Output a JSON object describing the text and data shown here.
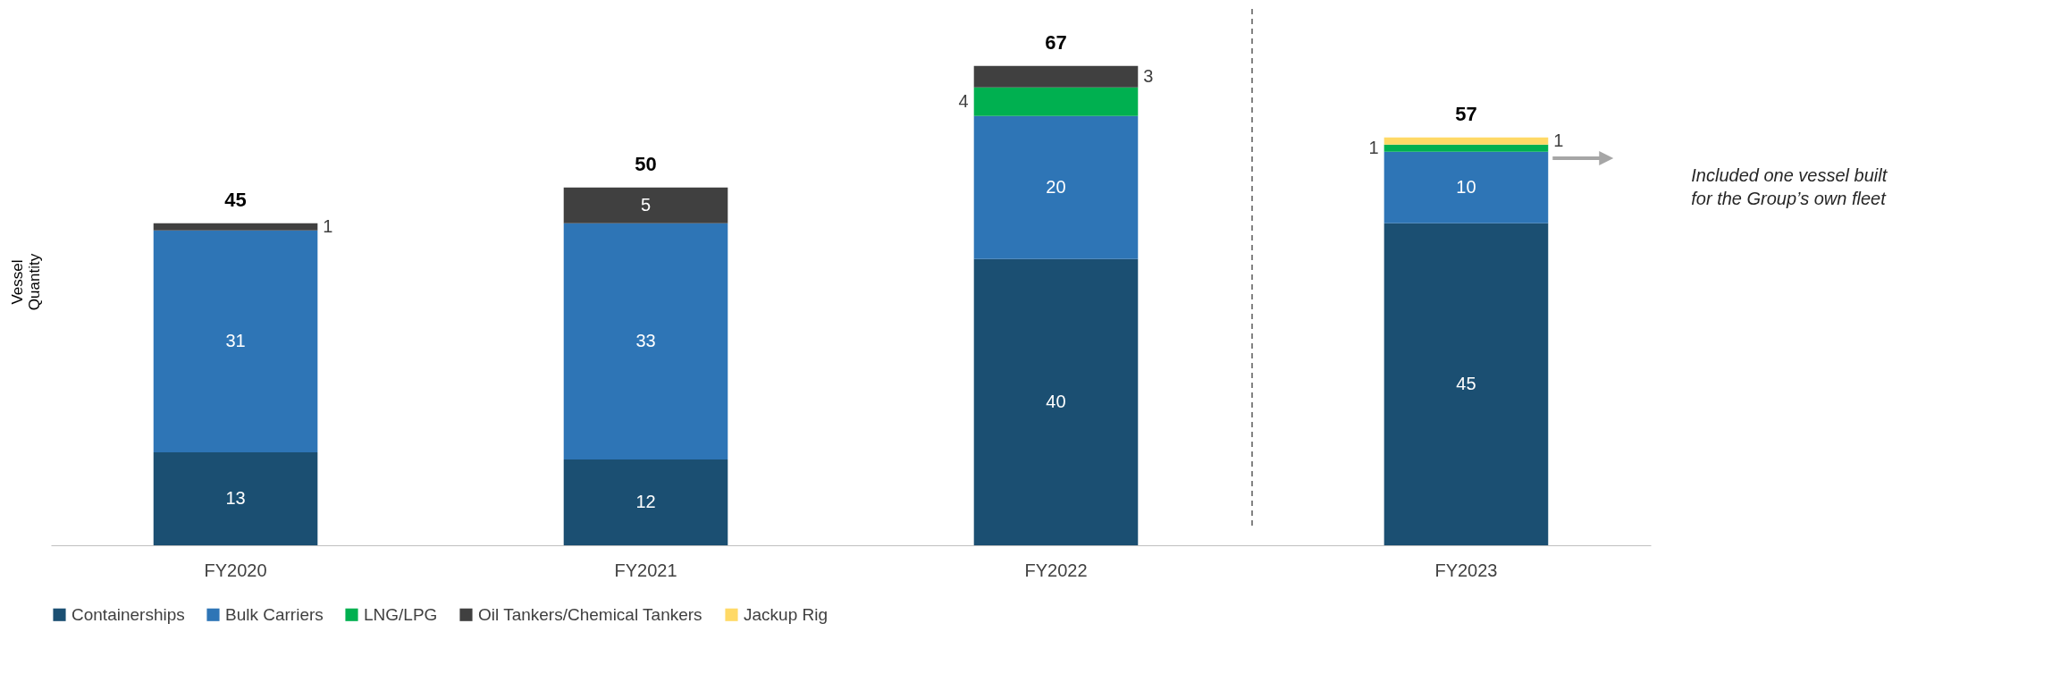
{
  "chart_data": {
    "type": "bar",
    "stacked": true,
    "ylabel": "Vessel Quantity",
    "categories": [
      "FY2020",
      "FY2021",
      "FY2022",
      "FY2023"
    ],
    "series": [
      {
        "name": "Containerships",
        "color": "#1b4f72",
        "values": [
          13,
          12,
          40,
          45
        ]
      },
      {
        "name": "Bulk Carriers",
        "color": "#2e75b6",
        "values": [
          31,
          33,
          20,
          10
        ]
      },
      {
        "name": "LNG/LPG",
        "color": "#00b050",
        "values": [
          null,
          null,
          4,
          1
        ]
      },
      {
        "name": "Oil Tankers/Chemical Tankers",
        "color": "#404040",
        "values": [
          1,
          5,
          3,
          null
        ]
      },
      {
        "name": "Jackup Rig",
        "color": "#ffd966",
        "values": [
          null,
          null,
          null,
          1
        ]
      }
    ],
    "data_labels": true,
    "totals": [
      "45",
      "50",
      "67",
      "57"
    ],
    "legend": "bottom",
    "tick_labels": "x",
    "annotations": [
      "Included one vessel built for the Group’s own fleet"
    ]
  }
}
